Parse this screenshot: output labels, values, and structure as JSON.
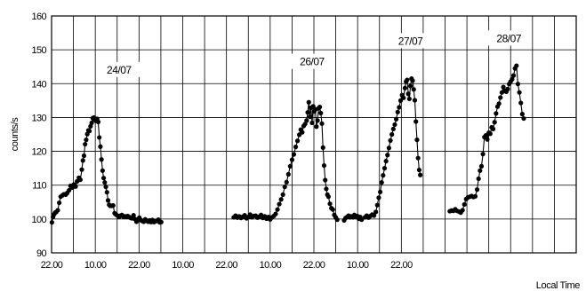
{
  "chart_data": {
    "type": "scatter",
    "title": "",
    "xlabel": "Local Time",
    "ylabel": "counts/s",
    "ylim": [
      90,
      160
    ],
    "yticks": [
      90,
      100,
      110,
      120,
      130,
      140,
      150,
      160
    ],
    "xlim_hours": [
      0,
      144
    ],
    "xtick_labels": [
      "22.00",
      "10.00",
      "22.00",
      "10.00",
      "22.00",
      "10.00",
      "22.00",
      "10.00",
      "22.00"
    ],
    "grid": true,
    "annotations": [
      {
        "text": "24/07",
        "x": 18.5,
        "y": 143.8
      },
      {
        "text": "26/07",
        "x": 71.5,
        "y": 146.2
      },
      {
        "text": "27/07",
        "x": 98.5,
        "y": 152.3
      },
      {
        "text": "28/07",
        "x": 125.5,
        "y": 153.1
      }
    ],
    "series": [
      {
        "values": [
          [
            0.1,
            99.0
          ],
          [
            0.4,
            100.6
          ],
          [
            0.7,
            101.4
          ],
          [
            1.0,
            101.9
          ],
          [
            1.3,
            102.1
          ],
          [
            1.7,
            102.6
          ],
          [
            2.1,
            104.8
          ],
          [
            2.5,
            106.6
          ],
          [
            3.0,
            107.0
          ],
          [
            3.4,
            107.3
          ],
          [
            3.9,
            107.2
          ],
          [
            4.3,
            107.7
          ],
          [
            4.8,
            108.5
          ],
          [
            5.2,
            109.8
          ],
          [
            5.7,
            109.3
          ],
          [
            6.1,
            110.2
          ],
          [
            6.6,
            109.6
          ],
          [
            7.0,
            111.1
          ],
          [
            7.5,
            112.2
          ],
          [
            7.9,
            111.6
          ],
          [
            8.3,
            114.6
          ],
          [
            8.6,
            117.3
          ],
          [
            8.9,
            118.7
          ],
          [
            9.2,
            122.1
          ],
          [
            9.5,
            123.4
          ],
          [
            9.8,
            125.1
          ],
          [
            10.1,
            126.2
          ],
          [
            10.4,
            126.0
          ],
          [
            10.7,
            127.4
          ],
          [
            11.0,
            128.4
          ],
          [
            11.3,
            129.8
          ],
          [
            11.6,
            130.0
          ],
          [
            11.9,
            129.3
          ],
          [
            12.2,
            129.0
          ],
          [
            12.5,
            129.6
          ],
          [
            12.8,
            128.7
          ],
          [
            13.1,
            124.1
          ],
          [
            13.4,
            121.4
          ],
          [
            13.7,
            117.6
          ],
          [
            14.0,
            114.3
          ],
          [
            14.3,
            112.1
          ],
          [
            14.6,
            110.8
          ],
          [
            14.9,
            109.5
          ],
          [
            15.2,
            107.9
          ],
          [
            15.5,
            105.5
          ],
          [
            15.8,
            104.2
          ],
          [
            16.1,
            103.9
          ],
          [
            16.5,
            103.9
          ],
          [
            16.9,
            104.0
          ],
          [
            17.3,
            101.7
          ],
          [
            17.7,
            101.3
          ],
          [
            18.1,
            101.0
          ],
          [
            18.5,
            100.6
          ],
          [
            18.9,
            101.0
          ],
          [
            19.3,
            101.2
          ],
          [
            19.7,
            100.7
          ],
          [
            20.1,
            100.8
          ],
          [
            20.5,
            100.6
          ],
          [
            20.9,
            100.9
          ],
          [
            21.3,
            100.6
          ],
          [
            21.7,
            100.3
          ],
          [
            22.1,
            100.2
          ],
          [
            22.5,
            101.1
          ],
          [
            22.9,
            100.0
          ],
          [
            23.3,
            99.2
          ],
          [
            23.7,
            99.9
          ],
          [
            24.1,
            100.4
          ],
          [
            24.5,
            99.7
          ],
          [
            24.9,
            99.4
          ],
          [
            25.3,
            99.2
          ],
          [
            25.7,
            99.9
          ],
          [
            26.1,
            99.5
          ],
          [
            26.5,
            99.2
          ],
          [
            26.9,
            99.6
          ],
          [
            27.3,
            99.1
          ],
          [
            27.7,
            99.7
          ],
          [
            28.1,
            99.1
          ],
          [
            28.5,
            99.4
          ],
          [
            28.9,
            99.4
          ],
          [
            29.3,
            99.8
          ],
          [
            29.7,
            99.0
          ],
          [
            30.1,
            99.1
          ]
        ]
      },
      {
        "values": [
          [
            50.0,
            100.5
          ],
          [
            50.5,
            101.0
          ],
          [
            51.0,
            100.4
          ],
          [
            51.5,
            100.8
          ],
          [
            52.0,
            100.3
          ],
          [
            52.5,
            100.7
          ],
          [
            53.0,
            101.1
          ],
          [
            53.5,
            100.2
          ],
          [
            54.0,
            100.6
          ],
          [
            54.5,
            101.3
          ],
          [
            55.0,
            100.5
          ],
          [
            55.5,
            100.9
          ],
          [
            56.0,
            101.0
          ],
          [
            56.5,
            100.4
          ],
          [
            57.0,
            100.7
          ],
          [
            57.5,
            101.2
          ],
          [
            58.0,
            100.3
          ],
          [
            58.5,
            100.8
          ],
          [
            59.0,
            100.1
          ],
          [
            59.5,
            100.6
          ],
          [
            60.0,
            99.9
          ],
          [
            60.5,
            100.5
          ],
          [
            61.0,
            100.9
          ],
          [
            61.5,
            101.5
          ],
          [
            62.0,
            102.8
          ],
          [
            62.5,
            104.4
          ],
          [
            63.0,
            105.8
          ],
          [
            63.5,
            107.2
          ],
          [
            64.0,
            109.5
          ],
          [
            64.5,
            110.9
          ],
          [
            65.0,
            113.2
          ],
          [
            65.5,
            115.6
          ],
          [
            66.0,
            117.5
          ],
          [
            66.5,
            119.1
          ],
          [
            67.0,
            121.3
          ],
          [
            67.5,
            123.1
          ],
          [
            68.0,
            124.9
          ],
          [
            68.4,
            126.4
          ],
          [
            68.8,
            125.6
          ],
          [
            69.2,
            127.5
          ],
          [
            69.6,
            128.1
          ],
          [
            70.0,
            129.1
          ],
          [
            70.3,
            131.5
          ],
          [
            70.6,
            134.5
          ],
          [
            70.9,
            130.2
          ],
          [
            71.2,
            132.9
          ],
          [
            71.5,
            128.4
          ],
          [
            71.8,
            133.3
          ],
          [
            72.1,
            131.8
          ],
          [
            72.4,
            132.4
          ],
          [
            72.7,
            127.3
          ],
          [
            73.0,
            129.1
          ],
          [
            73.3,
            132.7
          ],
          [
            73.6,
            133.1
          ],
          [
            73.9,
            131.3
          ],
          [
            74.2,
            128.2
          ],
          [
            74.5,
            121.1
          ],
          [
            74.8,
            115.8
          ],
          [
            75.1,
            111.5
          ],
          [
            75.4,
            108.9
          ],
          [
            75.7,
            107.2
          ],
          [
            76.0,
            106.6
          ],
          [
            76.4,
            104.5
          ],
          [
            76.8,
            103.2
          ],
          [
            77.2,
            102.8
          ],
          [
            77.6,
            101.2
          ],
          [
            78.0,
            100.5
          ],
          [
            78.4,
            99.8
          ]
        ]
      },
      {
        "values": [
          [
            80.3,
            99.6
          ],
          [
            80.7,
            100.3
          ],
          [
            81.1,
            100.6
          ],
          [
            81.5,
            101.0
          ],
          [
            81.9,
            100.5
          ],
          [
            82.3,
            100.8
          ],
          [
            82.7,
            100.5
          ],
          [
            83.1,
            101.2
          ],
          [
            83.5,
            100.6
          ],
          [
            83.9,
            100.9
          ],
          [
            84.3,
            100.1
          ],
          [
            84.7,
            100.6
          ],
          [
            85.1,
            99.8
          ]
        ]
      },
      {
        "values": [
          [
            86.0,
            100.5
          ],
          [
            86.5,
            101.0
          ],
          [
            87.0,
            100.4
          ],
          [
            87.5,
            100.9
          ],
          [
            88.0,
            101.3
          ],
          [
            88.5,
            101.0
          ],
          [
            89.0,
            102.1
          ],
          [
            89.4,
            104.1
          ],
          [
            89.8,
            106.3
          ],
          [
            90.2,
            108.0
          ],
          [
            90.6,
            110.8
          ],
          [
            91.0,
            112.9
          ],
          [
            91.4,
            115.0
          ],
          [
            91.8,
            117.1
          ],
          [
            92.2,
            118.9
          ],
          [
            92.6,
            121.0
          ],
          [
            93.0,
            123.2
          ],
          [
            93.4,
            125.0
          ],
          [
            93.8,
            126.6
          ],
          [
            94.2,
            127.9
          ],
          [
            94.6,
            129.5
          ],
          [
            95.0,
            131.6
          ],
          [
            95.4,
            133.0
          ],
          [
            95.8,
            135.0
          ],
          [
            96.2,
            136.6
          ],
          [
            96.6,
            135.8
          ],
          [
            97.0,
            138.7
          ],
          [
            97.3,
            140.6
          ],
          [
            97.6,
            141.1
          ],
          [
            97.9,
            137.0
          ],
          [
            98.2,
            135.5
          ],
          [
            98.5,
            139.3
          ],
          [
            98.8,
            141.5
          ],
          [
            99.1,
            140.9
          ],
          [
            99.4,
            138.3
          ],
          [
            99.7,
            135.1
          ],
          [
            100.0,
            128.8
          ],
          [
            100.3,
            123.4
          ],
          [
            100.6,
            118.0
          ],
          [
            100.9,
            114.5
          ],
          [
            101.2,
            113.0
          ]
        ]
      },
      {
        "values": [
          [
            109.3,
            102.3
          ],
          [
            109.8,
            102.5
          ],
          [
            110.3,
            102.4
          ],
          [
            110.8,
            102.9
          ],
          [
            111.3,
            102.4
          ],
          [
            111.8,
            102.2
          ],
          [
            112.3,
            101.9
          ],
          [
            112.8,
            102.6
          ],
          [
            113.3,
            104.3
          ],
          [
            113.8,
            105.9
          ],
          [
            114.3,
            106.4
          ],
          [
            114.8,
            106.6
          ],
          [
            115.3,
            106.8
          ],
          [
            115.8,
            106.5
          ],
          [
            116.3,
            106.7
          ],
          [
            116.8,
            108.7
          ],
          [
            117.2,
            111.9
          ],
          [
            117.6,
            114.3
          ],
          [
            118.0,
            115.6
          ],
          [
            118.4,
            119.2
          ],
          [
            118.8,
            124.2
          ],
          [
            119.2,
            124.7
          ],
          [
            119.6,
            123.5
          ],
          [
            120.0,
            125.5
          ],
          [
            120.4,
            125.2
          ],
          [
            120.8,
            127.1
          ],
          [
            121.2,
            126.6
          ],
          [
            121.6,
            128.6
          ],
          [
            122.0,
            131.2
          ],
          [
            122.4,
            133.2
          ],
          [
            122.8,
            134.1
          ],
          [
            123.2,
            135.9
          ],
          [
            123.6,
            137.4
          ],
          [
            124.0,
            139.0
          ],
          [
            124.4,
            137.9
          ],
          [
            124.8,
            137.6
          ],
          [
            125.2,
            138.4
          ],
          [
            125.6,
            139.9
          ],
          [
            126.0,
            140.6
          ],
          [
            126.4,
            141.3
          ],
          [
            126.8,
            142.4
          ],
          [
            127.2,
            144.5
          ],
          [
            127.6,
            145.3
          ],
          [
            128.0,
            139.9
          ],
          [
            128.4,
            137.4
          ],
          [
            128.8,
            134.3
          ],
          [
            129.2,
            131.0
          ],
          [
            129.6,
            129.7
          ]
        ]
      }
    ]
  }
}
